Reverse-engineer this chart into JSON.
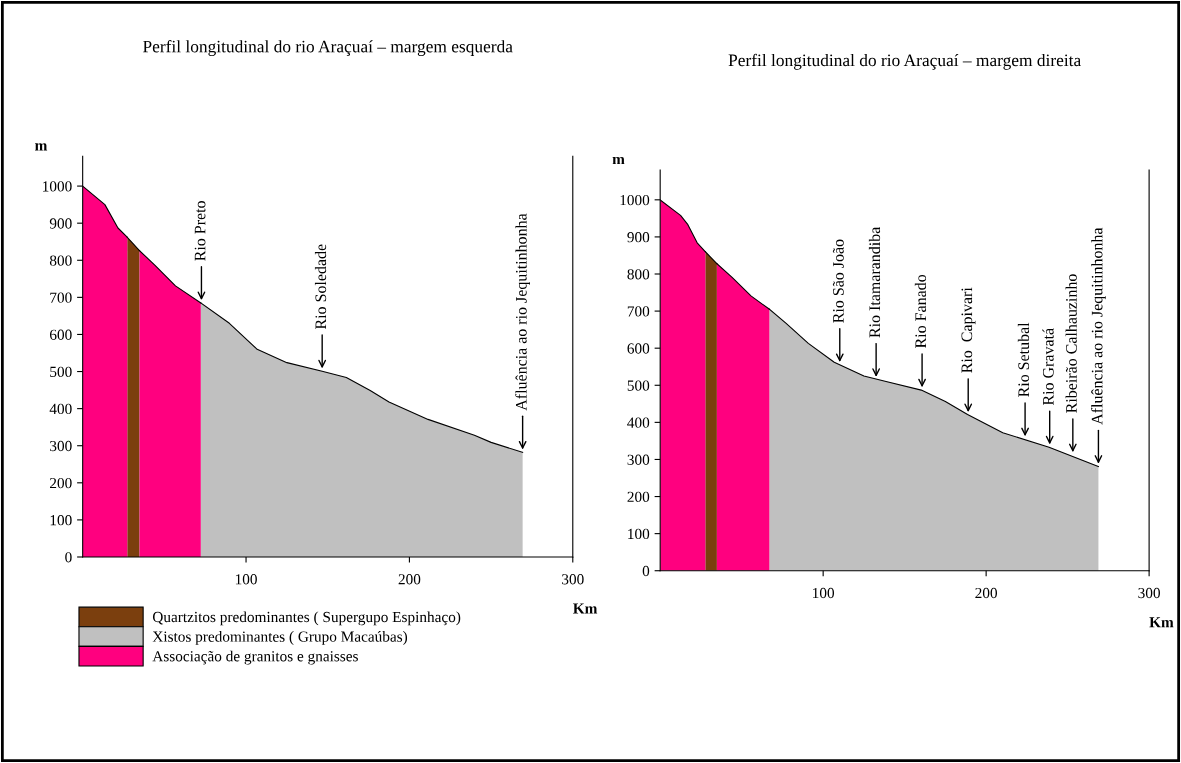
{
  "chart_data": [
    {
      "type": "area",
      "title": "Perfil longitudinal do rio Araçuaí – margem esquerda",
      "xlabel": "Km",
      "ylabel": "m",
      "xlim": [
        0,
        300
      ],
      "ylim": [
        0,
        1080
      ],
      "xticks": [
        100,
        200,
        300
      ],
      "yticks": [
        0,
        100,
        200,
        300,
        400,
        500,
        600,
        700,
        800,
        900,
        1000
      ],
      "grid": false,
      "legend": "bottom left",
      "series": [
        {
          "name": "Quartzitos predominantes ( Supergupo Espinhaço)",
          "color": "#7b3f0e",
          "x": [
            27.3,
            34.8
          ],
          "values": [
            862,
            826
          ]
        },
        {
          "name": "Xistos predominantes ( Grupo Macaúbas)",
          "color": "#c0c0c0",
          "x": [
            72.3,
            89.8,
            106.8,
            125,
            146.6,
            161.4,
            176,
            187.5,
            211.4,
            239.8,
            250,
            269.3
          ],
          "values": [
            685,
            630,
            560,
            524,
            501,
            484,
            449,
            418,
            371,
            328,
            309,
            282
          ]
        },
        {
          "name": "Associação de granitos e gnaisses",
          "color": "#ff007f",
          "x": [
            0,
            13.6,
            21.6,
            27.3
          ],
          "values": [
            1000,
            950,
            887,
            862
          ]
        },
        {
          "color": "#ff007f",
          "x": [
            34.8,
            44.3,
            56.8,
            72.3
          ],
          "values": [
            826,
            786,
            731,
            685
          ]
        }
      ],
      "annotations": [
        {
          "text": "Rio Preto",
          "x": 72.7,
          "y": 685
        },
        {
          "text": "Rio Soledade",
          "x": 146.6,
          "y": 501
        },
        {
          "text": "Afluência ao rio Jequitinhonha",
          "x": 269.3,
          "y": 282
        }
      ]
    },
    {
      "type": "area",
      "title": "Perfil longitudinal do rio Araçuaí – margem direita",
      "xlabel": "Km",
      "ylabel": "m",
      "xlim": [
        0,
        300
      ],
      "ylim": [
        0,
        1080
      ],
      "xticks": [
        100,
        200,
        300
      ],
      "yticks": [
        0,
        100,
        200,
        300,
        400,
        500,
        600,
        700,
        800,
        900,
        1000
      ],
      "grid": false,
      "legend": false,
      "series": [
        {
          "color": "#7b3f0e",
          "x": [
            27.7,
            34.8
          ],
          "values": [
            860,
            828
          ]
        },
        {
          "color": "#c0c0c0",
          "x": [
            67,
            77.3,
            90.9,
            106.8,
            125,
            138.6,
            160.2,
            175,
            188.6,
            210.2,
            238.6,
            259,
            268.9
          ],
          "values": [
            705,
            667,
            613,
            562,
            525,
            510,
            487,
            456,
            421,
            372,
            333,
            298,
            281
          ]
        },
        {
          "color": "#ff007f",
          "x": [
            0,
            12.5,
            17,
            22.7,
            27.7
          ],
          "values": [
            1000,
            958,
            933,
            884,
            860
          ]
        },
        {
          "color": "#ff007f",
          "x": [
            34.8,
            44.3,
            55.7,
            67
          ],
          "values": [
            828,
            790,
            741,
            705
          ]
        }
      ],
      "annotations": [
        {
          "text": "Rio São João",
          "x": 110.2,
          "y": 555
        },
        {
          "text": "Rio Itamarandiba",
          "x": 132.5,
          "y": 515
        },
        {
          "text": "Rio Fanado",
          "x": 160.7,
          "y": 487
        },
        {
          "text": "Rio  Capivari",
          "x": 189,
          "y": 420
        },
        {
          "text": "Rio Setubal",
          "x": 223.9,
          "y": 355
        },
        {
          "text": "Rio Gravatá",
          "x": 239,
          "y": 333
        },
        {
          "text": "Ribeirão Calhauzinho",
          "x": 253.2,
          "y": 312
        },
        {
          "text": "Afluência ao rio Jequitinhonha",
          "x": 268.9,
          "y": 281
        }
      ]
    }
  ]
}
